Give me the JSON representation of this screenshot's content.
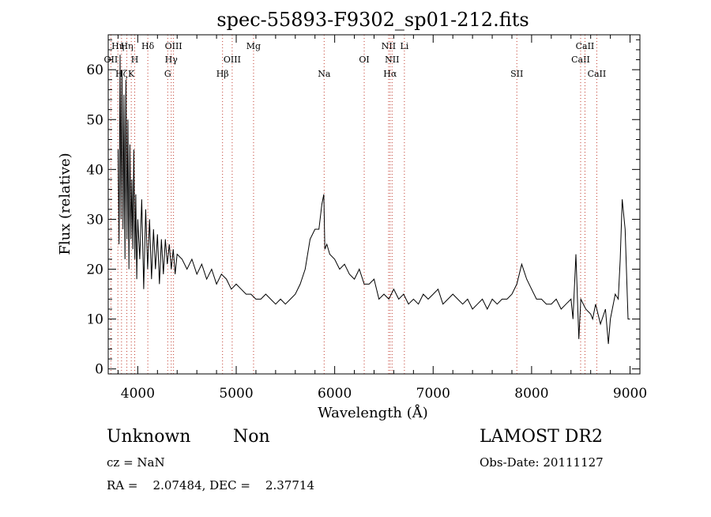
{
  "chart_data": {
    "type": "line",
    "title": "spec-55893-F9302_sp01-212.fits",
    "xlabel": "Wavelength (Å)",
    "ylabel": "Flux (relative)",
    "xlim": [
      3700,
      9100
    ],
    "ylim": [
      -1,
      67
    ],
    "x_ticks": [
      4000,
      5000,
      6000,
      7000,
      8000,
      9000
    ],
    "y_ticks": [
      0,
      10,
      20,
      30,
      40,
      50,
      60
    ],
    "grid": false,
    "line_color": "#000000",
    "marker_color": "#c0392b",
    "series": [
      {
        "x": [
          3800,
          3810,
          3820,
          3830,
          3840,
          3850,
          3860,
          3870,
          3880,
          3890,
          3900,
          3910,
          3920,
          3930,
          3940,
          3950,
          3960,
          3970,
          3980,
          3990,
          4000,
          4020,
          4040,
          4060,
          4080,
          4100,
          4120,
          4140,
          4160,
          4180,
          4200,
          4220,
          4240,
          4260,
          4280,
          4300,
          4320,
          4340,
          4360,
          4380,
          4400,
          4450,
          4500,
          4550,
          4600,
          4650,
          4700,
          4750,
          4800,
          4850,
          4900,
          4950,
          5000,
          5050,
          5100,
          5150,
          5200,
          5250,
          5300,
          5350,
          5400,
          5450,
          5500,
          5550,
          5600,
          5650,
          5700,
          5750,
          5800,
          5840,
          5870,
          5890,
          5900,
          5920,
          5950,
          6000,
          6050,
          6100,
          6150,
          6200,
          6250,
          6300,
          6350,
          6400,
          6450,
          6500,
          6550,
          6600,
          6650,
          6700,
          6750,
          6800,
          6850,
          6900,
          6950,
          7000,
          7050,
          7100,
          7150,
          7200,
          7250,
          7300,
          7350,
          7400,
          7450,
          7500,
          7550,
          7600,
          7650,
          7700,
          7750,
          7800,
          7850,
          7900,
          7950,
          8000,
          8050,
          8100,
          8150,
          8200,
          8250,
          8300,
          8350,
          8400,
          8420,
          8450,
          8480,
          8500,
          8550,
          8600,
          8620,
          8650,
          8700,
          8750,
          8780,
          8800,
          8850,
          8880,
          8900,
          8920,
          8950,
          8980,
          9000
        ],
        "y": [
          44,
          25,
          63,
          30,
          60,
          28,
          55,
          22,
          58,
          26,
          50,
          20,
          45,
          26,
          38,
          24,
          44,
          22,
          35,
          18,
          30,
          22,
          34,
          16,
          32,
          20,
          30,
          18,
          28,
          20,
          27,
          17,
          26,
          19,
          26,
          21,
          25,
          20,
          24,
          19,
          23,
          22,
          20,
          22,
          19,
          21,
          18,
          20,
          17,
          19,
          18,
          16,
          17,
          16,
          15,
          15,
          14,
          14,
          15,
          14,
          13,
          14,
          13,
          14,
          15,
          17,
          20,
          26,
          28,
          28,
          33,
          35,
          24,
          25,
          23,
          22,
          20,
          21,
          19,
          18,
          20,
          17,
          17,
          18,
          14,
          15,
          14,
          16,
          14,
          15,
          13,
          14,
          13,
          15,
          14,
          15,
          16,
          13,
          14,
          15,
          14,
          13,
          14,
          12,
          13,
          14,
          12,
          14,
          13,
          14,
          14,
          15,
          17,
          21,
          18,
          16,
          14,
          14,
          13,
          13,
          14,
          12,
          13,
          14,
          10,
          23,
          6,
          14,
          12,
          11,
          10,
          13,
          9,
          12,
          5,
          10,
          15,
          14,
          22,
          34,
          28,
          10,
          10
        ]
      }
    ],
    "lines": [
      {
        "x": 3727,
        "label": "OII",
        "row": 1
      },
      {
        "x": 3798,
        "label": "Hη",
        "row": 0
      },
      {
        "x": 3835,
        "label": "Hζ",
        "row": 2
      },
      {
        "x": 3889,
        "label": "Hη",
        "row": 0
      },
      {
        "x": 3934,
        "label": "K",
        "row": 2
      },
      {
        "x": 3969,
        "label": "H",
        "row": 1
      },
      {
        "x": 4102,
        "label": "Hδ",
        "row": 0
      },
      {
        "x": 4304,
        "label": "G",
        "row": 2
      },
      {
        "x": 4340,
        "label": "Hγ",
        "row": 1
      },
      {
        "x": 4363,
        "label": "OIII",
        "row": 0
      },
      {
        "x": 4861,
        "label": "Hβ",
        "row": 2
      },
      {
        "x": 4959,
        "label": "OIII",
        "row": 1
      },
      {
        "x": 5176,
        "label": "Mg",
        "row": 0
      },
      {
        "x": 5893,
        "label": "Na",
        "row": 2
      },
      {
        "x": 6300,
        "label": "OI",
        "row": 1
      },
      {
        "x": 6548,
        "label": "NII",
        "row": 0
      },
      {
        "x": 6563,
        "label": "Hα",
        "row": 2
      },
      {
        "x": 6583,
        "label": "NII",
        "row": 1
      },
      {
        "x": 6708,
        "label": "Li",
        "row": 0
      },
      {
        "x": 7850,
        "label": "SII",
        "row": 2
      },
      {
        "x": 8498,
        "label": "CaII",
        "row": 1
      },
      {
        "x": 8542,
        "label": "CaII",
        "row": 0
      },
      {
        "x": 8662,
        "label": "CaII",
        "row": 2
      }
    ]
  },
  "info": {
    "class": "Unknown",
    "subclass": "Non",
    "survey": "LAMOST DR2",
    "cz": "cz = NaN",
    "obs_date": "Obs-Date: 20111127",
    "radec": "RA =    2.07484, DEC =    2.37714"
  }
}
